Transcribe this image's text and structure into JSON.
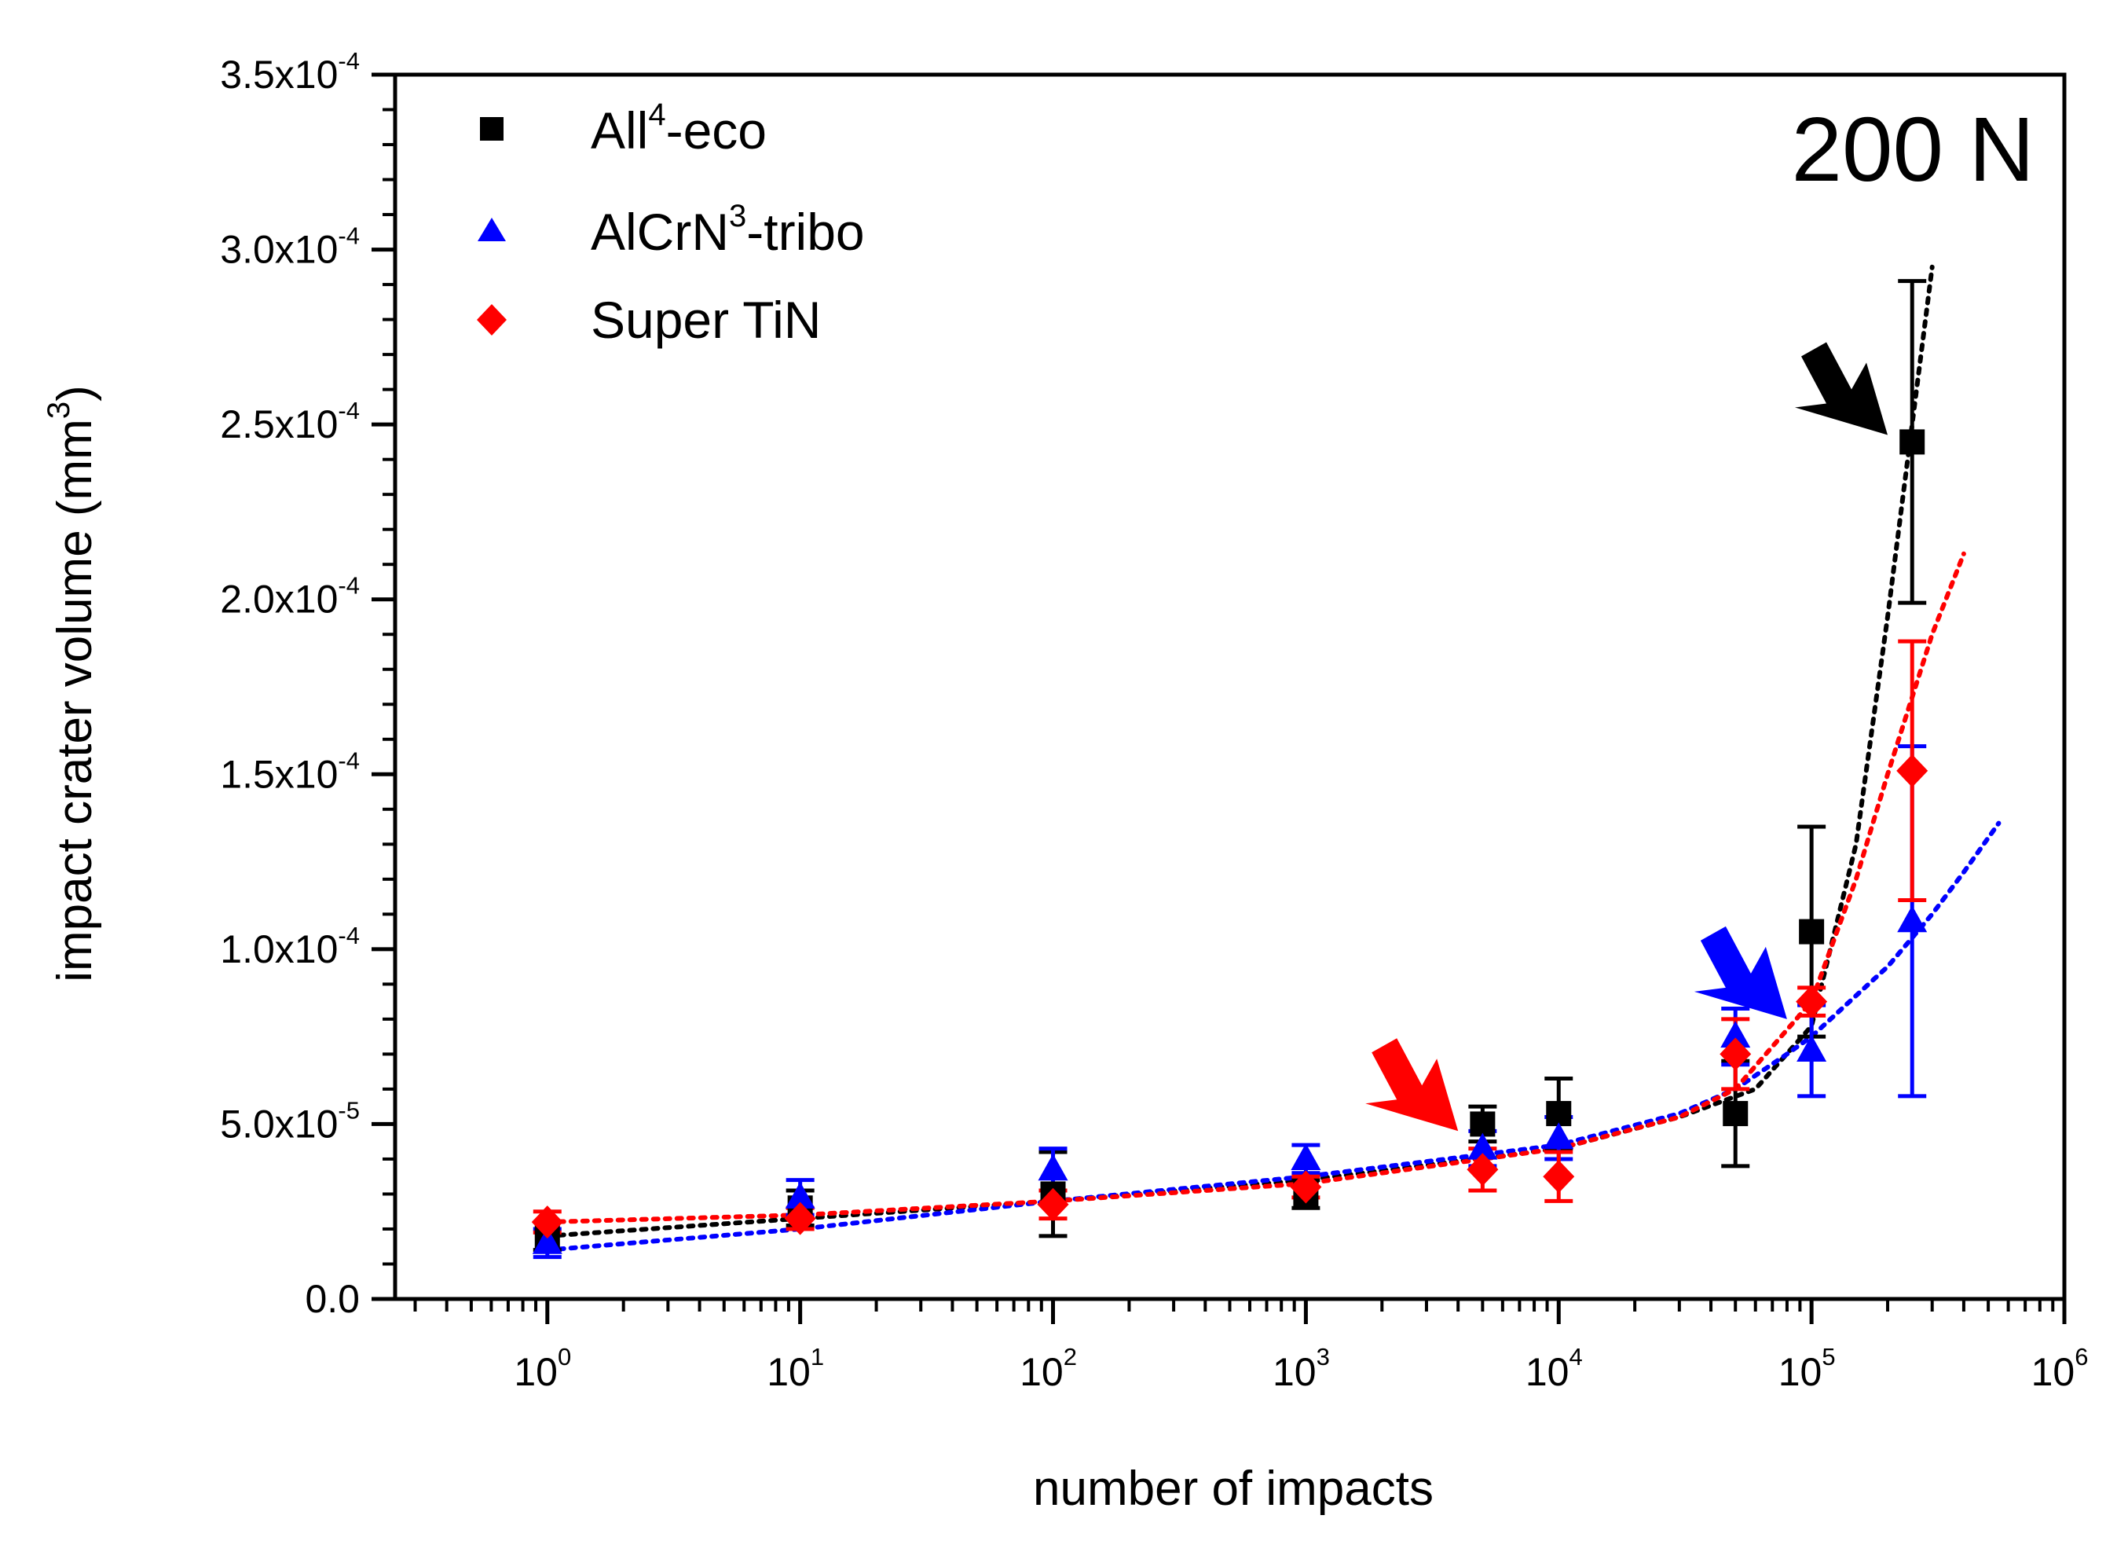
{
  "chart_data": {
    "type": "scatter",
    "title": "",
    "xlabel": "number of impacts",
    "ylabel": "impact crater volume (mm",
    "ylabel_sup": "3",
    "ylabel_close": ")",
    "xscale": "log",
    "xlim": [
      0.25,
      1000000
    ],
    "ylim": [
      0,
      0.00035
    ],
    "x_ticks": [
      {
        "value": 1,
        "base": "10",
        "exp": "0"
      },
      {
        "value": 10,
        "base": "10",
        "exp": "1"
      },
      {
        "value": 100,
        "base": "10",
        "exp": "2"
      },
      {
        "value": 1000,
        "base": "10",
        "exp": "3"
      },
      {
        "value": 10000,
        "base": "10",
        "exp": "4"
      },
      {
        "value": 100000,
        "base": "10",
        "exp": "5"
      },
      {
        "value": 1000000,
        "base": "10",
        "exp": "6"
      }
    ],
    "y_ticks": [
      {
        "value": 0,
        "label": "0.0",
        "exp": ""
      },
      {
        "value": 5e-05,
        "label": "5.0x10",
        "exp": "-5"
      },
      {
        "value": 0.0001,
        "label": "1.0x10",
        "exp": "-4"
      },
      {
        "value": 0.00015,
        "label": "1.5x10",
        "exp": "-4"
      },
      {
        "value": 0.0002,
        "label": "2.0x10",
        "exp": "-4"
      },
      {
        "value": 0.00025,
        "label": "2.5x10",
        "exp": "-4"
      },
      {
        "value": 0.0003,
        "label": "3.0x10",
        "exp": "-4"
      },
      {
        "value": 0.00035,
        "label": "3.5x10",
        "exp": "-4"
      }
    ],
    "legend_position": "top-left",
    "annotation": "200 N",
    "series": [
      {
        "name": "All",
        "name_sup": "4",
        "name_suffix": "-eco",
        "color": "#000000",
        "marker": "square",
        "x": [
          1,
          10,
          100,
          1000,
          5000,
          10000,
          50000,
          100000,
          250000
        ],
        "y": [
          1.8e-05,
          2.6e-05,
          3e-05,
          3e-05,
          5e-05,
          5.3e-05,
          5.3e-05,
          0.000105,
          0.000245
        ],
        "err": [
          4e-06,
          5e-06,
          1.2e-05,
          4e-06,
          5e-06,
          1e-05,
          1.5e-05,
          3e-05,
          4.6e-05
        ],
        "fit_x": [
          1,
          10,
          100,
          1000,
          10000,
          30000,
          60000,
          100000,
          150000,
          200000,
          250000,
          300000
        ],
        "fit_y": [
          1.8e-05,
          2.3e-05,
          2.8e-05,
          3.4e-05,
          4.3e-05,
          5.2e-05,
          6e-05,
          7.8e-05,
          0.00013,
          0.000195,
          0.00025,
          0.000295
        ]
      },
      {
        "name": "AlCrN",
        "name_sup": "3",
        "name_suffix": "-tribo",
        "color": "#0000ff",
        "marker": "triangle",
        "x": [
          1,
          10,
          100,
          1000,
          5000,
          10000,
          50000,
          100000,
          250000
        ],
        "y": [
          1.6e-05,
          2.9e-05,
          3.7e-05,
          4e-05,
          4.3e-05,
          4.6e-05,
          7.5e-05,
          7.1e-05,
          0.000108
        ],
        "err": [
          4e-06,
          5e-06,
          6e-06,
          4e-06,
          5e-06,
          6e-06,
          8e-06,
          1.3e-05,
          5e-05
        ],
        "fit_x": [
          1,
          10,
          100,
          1000,
          10000,
          30000,
          50000,
          80000,
          100000,
          200000,
          300000,
          400000,
          550000
        ],
        "fit_y": [
          1.4e-05,
          2e-05,
          2.8e-05,
          3.5e-05,
          4.4e-05,
          5.3e-05,
          6e-05,
          7e-05,
          7.5e-05,
          9.5e-05,
          0.00011,
          0.000122,
          0.000136
        ]
      },
      {
        "name": "Super TiN",
        "name_sup": "",
        "name_suffix": "",
        "color": "#ff0000",
        "marker": "diamond",
        "x": [
          1,
          10,
          100,
          1000,
          5000,
          10000,
          50000,
          100000,
          250000
        ],
        "y": [
          2.2e-05,
          2.3e-05,
          2.7e-05,
          3.2e-05,
          3.7e-05,
          3.5e-05,
          7e-05,
          8.5e-05,
          0.000151
        ],
        "err": [
          3e-06,
          3e-06,
          4e-06,
          3e-06,
          6e-06,
          7e-06,
          1e-05,
          4e-06,
          3.7e-05
        ],
        "fit_x": [
          1,
          10,
          100,
          1000,
          10000,
          30000,
          50000,
          100000,
          150000,
          200000,
          300000,
          400000
        ],
        "fit_y": [
          2.2e-05,
          2.4e-05,
          2.8e-05,
          3.3e-05,
          4.3e-05,
          5.2e-05,
          6e-05,
          8.5e-05,
          0.00012,
          0.00015,
          0.00019,
          0.000213
        ]
      }
    ],
    "arrows": [
      {
        "color": "#000000",
        "x": 200000,
        "y": 0.000247
      },
      {
        "color": "#0000ff",
        "x": 80000,
        "y": 8e-05
      },
      {
        "color": "#ff0000",
        "x": 4000,
        "y": 4.8e-05
      }
    ]
  }
}
